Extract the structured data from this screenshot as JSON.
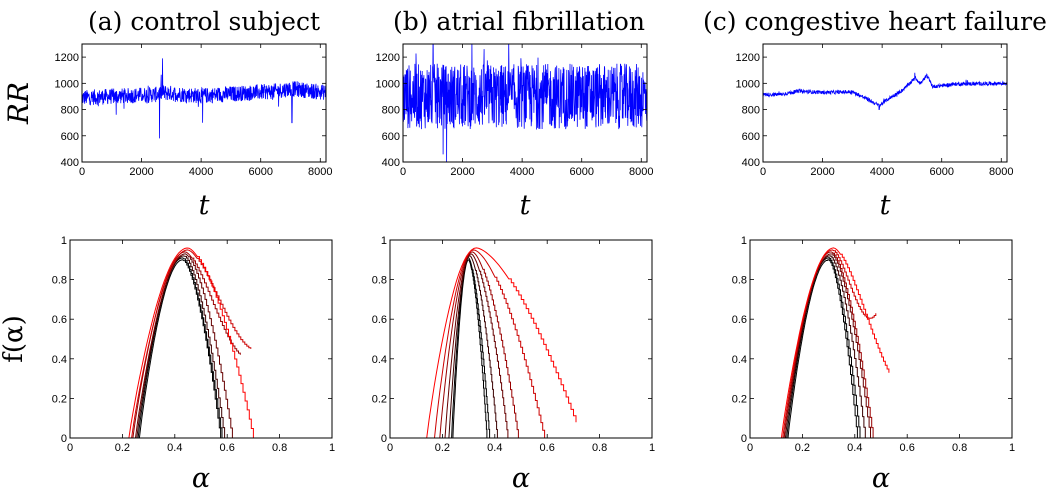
{
  "chart_data": [
    {
      "type": "line",
      "title": "(a) control subject",
      "xlabel": "t",
      "ylabel": "RR",
      "xlim": [
        0,
        8192
      ],
      "ylim": [
        400,
        1300
      ],
      "xticks": [
        "0",
        "2000",
        "4000",
        "6000",
        "8000"
      ],
      "yticks": [
        "400",
        "600",
        "800",
        "1000",
        "1200"
      ],
      "series": [
        {
          "color": "#0000ff",
          "profile": [
            [
              0,
              890
            ],
            [
              1000,
              900
            ],
            [
              2500,
              915
            ],
            [
              2700,
              930
            ],
            [
              3700,
              910
            ],
            [
              4000,
              905
            ],
            [
              6500,
              940
            ],
            [
              7000,
              960
            ],
            [
              8192,
              930
            ]
          ],
          "noise": 60,
          "spikes": [
            [
              2600,
              580
            ],
            [
              2700,
              1190
            ],
            [
              4050,
              700
            ],
            [
              7050,
              700
            ],
            [
              1150,
              760
            ]
          ]
        }
      ],
      "grid": false
    },
    {
      "type": "line",
      "title": "(b) atrial fibrillation",
      "xlabel": "t",
      "ylabel": "",
      "xlim": [
        0,
        8192
      ],
      "ylim": [
        400,
        1300
      ],
      "xticks": [
        "0",
        "2000",
        "4000",
        "6000",
        "8000"
      ],
      "yticks": [
        "400",
        "600",
        "800",
        "1000",
        "1200"
      ],
      "series": [
        {
          "color": "#0000ff",
          "profile": [
            [
              0,
              900
            ],
            [
              8192,
              900
            ]
          ],
          "noise": 250,
          "spikes": []
        }
      ],
      "grid": false
    },
    {
      "type": "line",
      "title": "(c) congestive heart failure",
      "xlabel": "t",
      "ylabel": "",
      "xlim": [
        0,
        8192
      ],
      "ylim": [
        400,
        1300
      ],
      "xticks": [
        "0",
        "2000",
        "4000",
        "6000",
        "8000"
      ],
      "yticks": [
        "400",
        "600",
        "800",
        "1000",
        "1200"
      ],
      "series": [
        {
          "color": "#0000ff",
          "profile": [
            [
              0,
              915
            ],
            [
              600,
              915
            ],
            [
              1200,
              940
            ],
            [
              2000,
              930
            ],
            [
              3000,
              935
            ],
            [
              3500,
              880
            ],
            [
              3900,
              830
            ],
            [
              4200,
              880
            ],
            [
              4700,
              950
            ],
            [
              5100,
              1040
            ],
            [
              5300,
              1000
            ],
            [
              5500,
              1060
            ],
            [
              5700,
              975
            ],
            [
              6500,
              995
            ],
            [
              8192,
              1000
            ]
          ],
          "noise": 14,
          "spikes": [
            [
              3900,
              800
            ],
            [
              5100,
              1080
            ],
            [
              5500,
              1070
            ]
          ]
        }
      ],
      "grid": false
    },
    {
      "type": "line",
      "xlabel": "α",
      "ylabel": "f(α)",
      "xlim": [
        0,
        1
      ],
      "ylim": [
        0,
        1
      ],
      "xticks": [
        "0",
        "0.2",
        "0.4",
        "0.6",
        "0.8",
        "1"
      ],
      "yticks": [
        "0",
        "0.2",
        "0.4",
        "0.6",
        "0.8",
        "1"
      ],
      "series": [
        {
          "color": "#000000",
          "left": 0.265,
          "peak_x": 0.43,
          "peak_y": 0.9,
          "right": 0.575,
          "end_y": 0
        },
        {
          "color": "#000000",
          "left": 0.26,
          "peak_x": 0.43,
          "peak_y": 0.91,
          "right": 0.58,
          "end_y": 0
        },
        {
          "color": "#3a0000",
          "left": 0.255,
          "peak_x": 0.435,
          "peak_y": 0.92,
          "right": 0.59,
          "end_y": 0
        },
        {
          "color": "#660000",
          "left": 0.25,
          "peak_x": 0.44,
          "peak_y": 0.93,
          "right": 0.62,
          "end_y": 0
        },
        {
          "color": "#990000",
          "left": 0.24,
          "peak_x": 0.44,
          "peak_y": 0.94,
          "right": 0.65,
          "end_y": 0.42
        },
        {
          "color": "#cc0000",
          "left": 0.235,
          "peak_x": 0.45,
          "peak_y": 0.95,
          "right": 0.69,
          "end_y": 0.45
        },
        {
          "color": "#ff0000",
          "left": 0.225,
          "peak_x": 0.45,
          "peak_y": 0.96,
          "right": 0.7,
          "end_y": 0
        }
      ],
      "grid": false
    },
    {
      "type": "line",
      "xlabel": "α",
      "ylabel": "",
      "xlim": [
        0,
        1
      ],
      "ylim": [
        0,
        1
      ],
      "xticks": [
        "0",
        "0.2",
        "0.4",
        "0.6",
        "0.8",
        "1"
      ],
      "yticks": [
        "0",
        "0.2",
        "0.4",
        "0.6",
        "0.8",
        "1"
      ],
      "series": [
        {
          "color": "#000000",
          "left": 0.24,
          "peak_x": 0.3,
          "peak_y": 0.9,
          "right": 0.37,
          "end_y": 0
        },
        {
          "color": "#000000",
          "left": 0.235,
          "peak_x": 0.3,
          "peak_y": 0.91,
          "right": 0.38,
          "end_y": 0
        },
        {
          "color": "#3a0000",
          "left": 0.225,
          "peak_x": 0.305,
          "peak_y": 0.92,
          "right": 0.41,
          "end_y": 0
        },
        {
          "color": "#660000",
          "left": 0.21,
          "peak_x": 0.31,
          "peak_y": 0.93,
          "right": 0.45,
          "end_y": 0
        },
        {
          "color": "#990000",
          "left": 0.19,
          "peak_x": 0.315,
          "peak_y": 0.94,
          "right": 0.49,
          "end_y": 0
        },
        {
          "color": "#cc0000",
          "left": 0.17,
          "peak_x": 0.32,
          "peak_y": 0.95,
          "right": 0.59,
          "end_y": 0
        },
        {
          "color": "#ff0000",
          "left": 0.14,
          "peak_x": 0.33,
          "peak_y": 0.96,
          "right": 0.71,
          "end_y": 0.08
        }
      ],
      "grid": false
    },
    {
      "type": "line",
      "xlabel": "α",
      "ylabel": "",
      "xlim": [
        0,
        1
      ],
      "ylim": [
        0,
        1
      ],
      "xticks": [
        "0",
        "0.2",
        "0.4",
        "0.6",
        "0.8",
        "1"
      ],
      "yticks": [
        "0",
        "0.2",
        "0.4",
        "0.6",
        "0.8",
        "1"
      ],
      "series": [
        {
          "color": "#000000",
          "left": 0.145,
          "peak_x": 0.3,
          "peak_y": 0.9,
          "right": 0.41,
          "end_y": 0
        },
        {
          "color": "#000000",
          "left": 0.14,
          "peak_x": 0.3,
          "peak_y": 0.91,
          "right": 0.42,
          "end_y": 0
        },
        {
          "color": "#3a0000",
          "left": 0.135,
          "peak_x": 0.305,
          "peak_y": 0.92,
          "right": 0.44,
          "end_y": 0
        },
        {
          "color": "#660000",
          "left": 0.13,
          "peak_x": 0.31,
          "peak_y": 0.93,
          "right": 0.46,
          "end_y": 0
        },
        {
          "color": "#990000",
          "left": 0.13,
          "peak_x": 0.31,
          "peak_y": 0.94,
          "right": 0.47,
          "end_y": 0
        },
        {
          "color": "#cc0000",
          "left": 0.125,
          "peak_x": 0.315,
          "peak_y": 0.95,
          "right": 0.48,
          "end_y": 0.63
        },
        {
          "color": "#ff0000",
          "left": 0.12,
          "peak_x": 0.32,
          "peak_y": 0.96,
          "right": 0.53,
          "end_y": 0.33
        }
      ],
      "grid": false
    }
  ]
}
